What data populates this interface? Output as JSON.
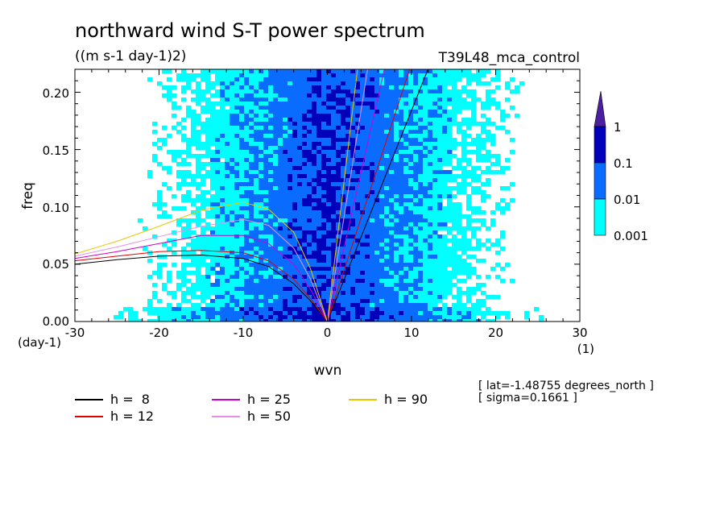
{
  "chart_data": {
    "type": "heatmap",
    "title": "northward wind S-T power spectrum",
    "units": "((m s-1 day-1)2)",
    "experiment": "T39L48_mca_control",
    "xlabel": "wvn",
    "ylabel": "freq",
    "x_unit": "(1)",
    "y_unit": "(day-1)",
    "xlim": [
      -30,
      30
    ],
    "ylim": [
      0,
      0.22
    ],
    "x_ticks": [
      -30,
      -20,
      -10,
      0,
      10,
      20,
      30
    ],
    "x_tick_labels": [
      "-30",
      "-20",
      "-10",
      "0",
      "10",
      "20",
      "30"
    ],
    "y_ticks": [
      0,
      0.05,
      0.1,
      0.15,
      0.2
    ],
    "y_tick_labels": [
      "0.00",
      "0.05",
      "0.10",
      "0.15",
      "0.20"
    ],
    "contour_levels": [
      0.001,
      0.01,
      0.1,
      1
    ],
    "colorbar": {
      "labels": [
        "1",
        "0.1",
        "0.01",
        "0.001"
      ],
      "colors": [
        "#00ffff",
        "#0a6cff",
        "#0000bb",
        "#4a1fa0"
      ],
      "extend": "max"
    },
    "series": [
      {
        "name": "h =  8",
        "label": "h =  8",
        "color": "#000000",
        "kelvin_slope": 0.0184,
        "x": [
          -30,
          -25,
          -20,
          -15,
          -10,
          -7,
          -4,
          -2,
          0
        ],
        "y": [
          0.05,
          0.054,
          0.057,
          0.058,
          0.055,
          0.048,
          0.033,
          0.018,
          0.0
        ]
      },
      {
        "name": "h = 12",
        "label": "h = 12",
        "color": "#e00000",
        "kelvin_slope": 0.0225,
        "x": [
          -30,
          -25,
          -20,
          -15,
          -10,
          -7,
          -4,
          -2,
          0
        ],
        "y": [
          0.053,
          0.057,
          0.061,
          0.062,
          0.06,
          0.053,
          0.037,
          0.02,
          0.0
        ]
      },
      {
        "name": "h = 25",
        "label": "h = 25",
        "color": "#cc00cc",
        "kelvin_slope": 0.0325,
        "x": [
          -30,
          -25,
          -20,
          -15,
          -10,
          -7,
          -4,
          -2,
          0
        ],
        "y": [
          0.055,
          0.061,
          0.068,
          0.075,
          0.075,
          0.068,
          0.05,
          0.028,
          0.0
        ]
      },
      {
        "name": "h = 50",
        "label": "h = 50",
        "color": "#e890e8",
        "kelvin_slope": 0.046,
        "x": [
          -30,
          -25,
          -20,
          -15,
          -10,
          -7,
          -4,
          -2,
          0
        ],
        "y": [
          0.057,
          0.065,
          0.074,
          0.083,
          0.089,
          0.084,
          0.064,
          0.037,
          0.0
        ]
      },
      {
        "name": "h = 90",
        "label": "h = 90",
        "color": "#e8c800",
        "kelvin_slope": 0.0615,
        "x": [
          -30,
          -25,
          -20,
          -15,
          -10,
          -7,
          -4,
          -2,
          0
        ],
        "y": [
          0.059,
          0.07,
          0.083,
          0.097,
          0.104,
          0.098,
          0.078,
          0.046,
          0.0
        ]
      }
    ]
  },
  "info": {
    "lat": "[ lat=-1.48755 degrees_north ]",
    "sigma": "[ sigma=0.1661 ]"
  }
}
